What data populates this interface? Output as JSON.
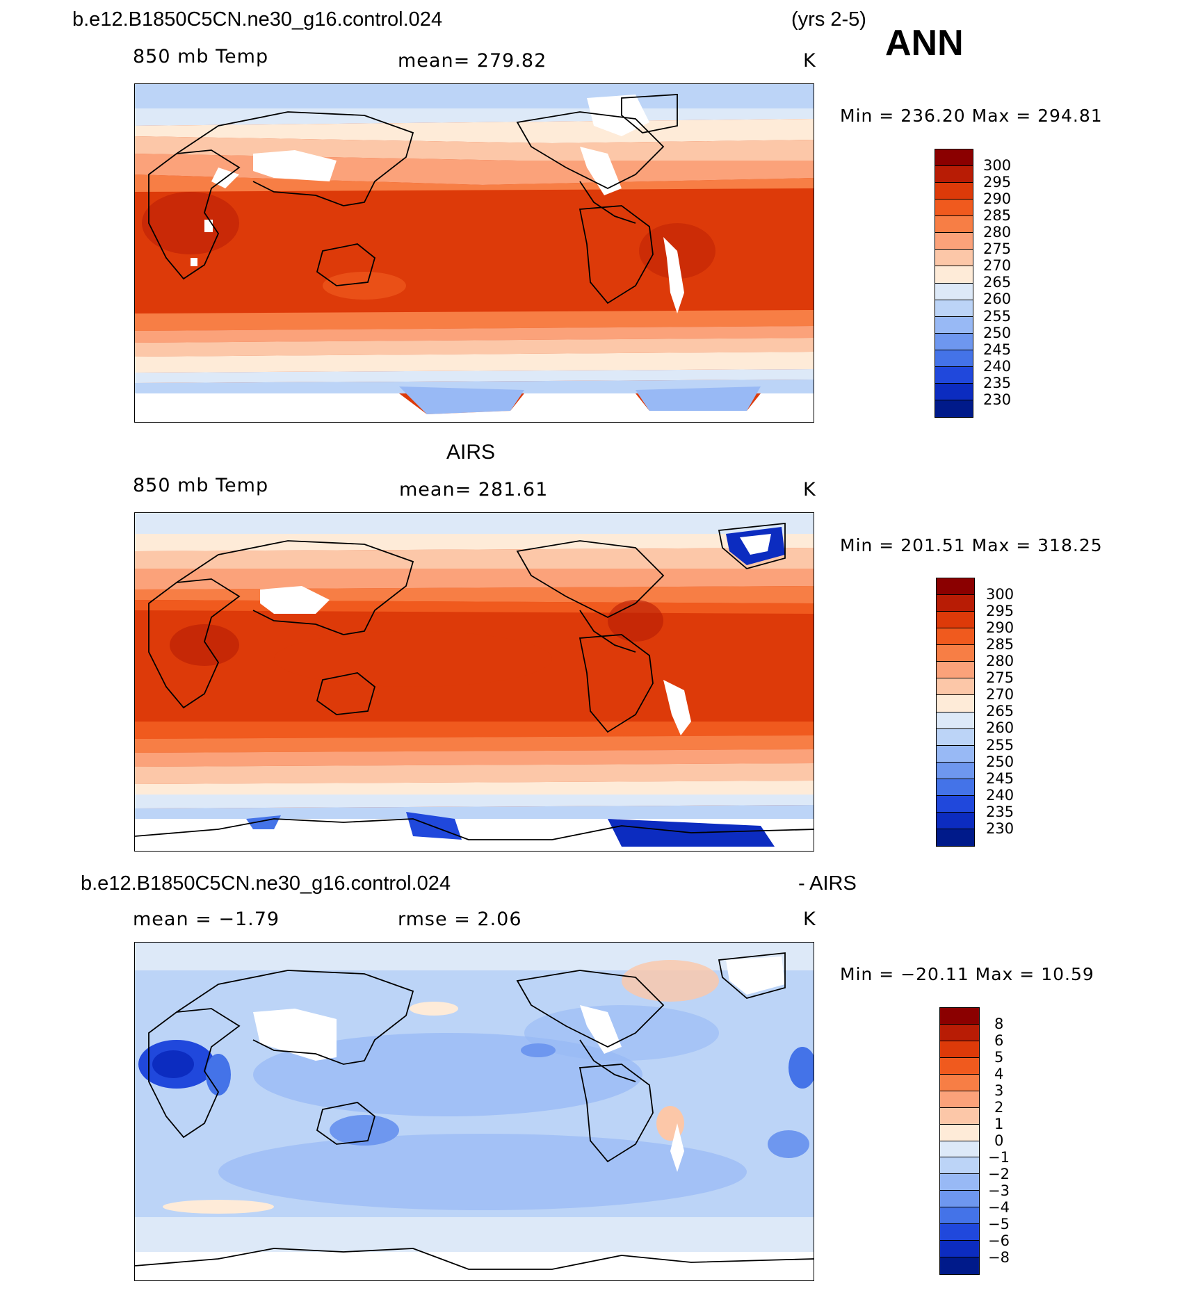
{
  "header": {
    "case_name": "b.e12.B1850C5CN.ne30_g16.control.024",
    "years": "(yrs 2-5)",
    "season": "ANN"
  },
  "panels": [
    {
      "id": "model",
      "title": "",
      "left_label": "850 mb Temp",
      "center_label": "mean=  279.82",
      "units": "K",
      "minmax": "Min  =  236.20  Max  =  294.81",
      "colorbar": {
        "levels": [
          "300",
          "295",
          "290",
          "285",
          "280",
          "275",
          "270",
          "265",
          "260",
          "255",
          "250",
          "245",
          "240",
          "235",
          "230"
        ],
        "colors": [
          "#8b0000",
          "#b81c05",
          "#dd3a09",
          "#f05a1e",
          "#f77e45",
          "#fba27a",
          "#fcc7a8",
          "#feebd8",
          "#dde9f8",
          "#bcd4f7",
          "#98b9f5",
          "#6e97ef",
          "#4473e8",
          "#2048dc",
          "#0c2cc0",
          "#001a8a"
        ]
      }
    },
    {
      "id": "obs",
      "title": "AIRS",
      "left_label": "850 mb Temp",
      "center_label": "mean=  281.61",
      "units": "K",
      "minmax": "Min  =  201.51  Max  =  318.25",
      "colorbar": {
        "levels": [
          "300",
          "295",
          "290",
          "285",
          "280",
          "275",
          "270",
          "265",
          "260",
          "255",
          "250",
          "245",
          "240",
          "235",
          "230"
        ],
        "colors": [
          "#8b0000",
          "#b81c05",
          "#dd3a09",
          "#f05a1e",
          "#f77e45",
          "#fba27a",
          "#fcc7a8",
          "#feebd8",
          "#dde9f8",
          "#bcd4f7",
          "#98b9f5",
          "#6e97ef",
          "#4473e8",
          "#2048dc",
          "#0c2cc0",
          "#001a8a"
        ]
      }
    },
    {
      "id": "diff",
      "title": "b.e12.B1850C5CN.ne30_g16.control.024",
      "title_right": "- AIRS",
      "left_label": "mean =   −1.79",
      "center_label": "rmse =    2.06",
      "units": "K",
      "minmax": "Min  =  −20.11  Max  =    10.59",
      "colorbar": {
        "levels": [
          "8",
          "6",
          "5",
          "4",
          "3",
          "2",
          "1",
          "0",
          "−1",
          "−2",
          "−3",
          "−4",
          "−5",
          "−6",
          "−8"
        ],
        "colors": [
          "#8b0000",
          "#b81c05",
          "#dd3a09",
          "#f05a1e",
          "#f77e45",
          "#fba27a",
          "#fcc7a8",
          "#feebd8",
          "#dde9f8",
          "#bcd4f7",
          "#98b9f5",
          "#6e97ef",
          "#4473e8",
          "#2048dc",
          "#0c2cc0",
          "#001a8a"
        ]
      }
    }
  ]
}
